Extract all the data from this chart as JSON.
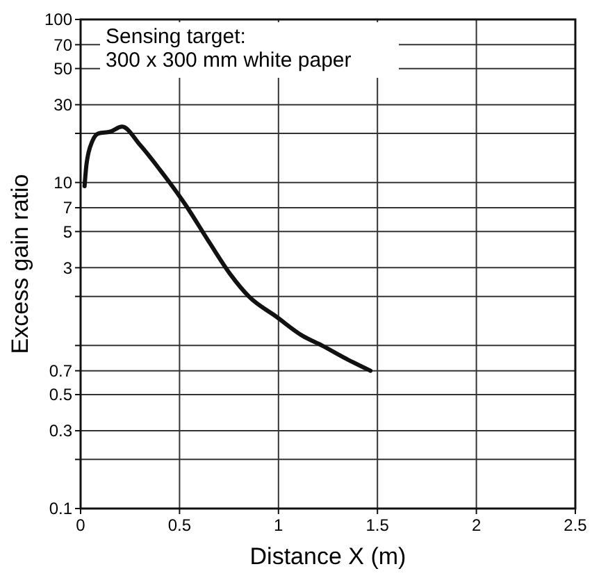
{
  "chart_data": {
    "type": "line",
    "xlabel": "Distance X (m)",
    "ylabel": "Excess gain ratio",
    "annotations": [
      "Sensing target:\n300 x 300 mm white paper"
    ],
    "x": [
      0.02,
      0.03,
      0.06,
      0.09,
      0.15,
      0.21,
      0.3,
      0.4,
      0.53,
      0.65,
      0.76,
      0.85,
      0.99,
      1.12,
      1.22,
      1.35,
      1.465
    ],
    "series": [
      {
        "color": "#111111",
        "values": [
          9.5,
          13,
          18,
          20,
          20.5,
          22,
          17,
          12,
          7.3,
          4.3,
          2.7,
          2.0,
          1.5,
          1.15,
          1.0,
          0.82,
          0.7
        ]
      }
    ],
    "xlim": [
      0,
      2.5
    ],
    "xticks": [
      0,
      0.5,
      1,
      1.5,
      2,
      2.5
    ],
    "ylim": [
      0.1,
      100
    ],
    "yticks": [
      0.1,
      {
        "value": 0.2,
        "label": null
      },
      0.3,
      0.5,
      0.7,
      {
        "value": 1,
        "label": null
      },
      {
        "value": 2,
        "label": null
      },
      3,
      5,
      7,
      10,
      {
        "value": 20,
        "label": null
      },
      30,
      50,
      70,
      100
    ],
    "log": "y",
    "grid": true,
    "marker": "none",
    "line_style": "solid"
  }
}
